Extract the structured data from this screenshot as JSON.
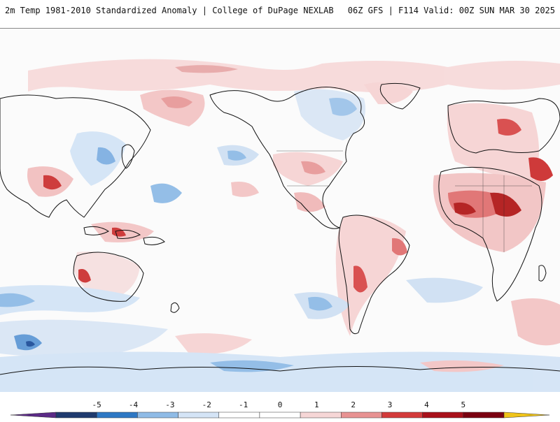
{
  "header": {
    "title": "2m Temp 1981-2010 Standardized Anomaly | College of DuPage NEXLAB",
    "run_info": "06Z GFS | F114 Valid: 00Z SUN MAR 30 2025"
  },
  "colorbar": {
    "ticks": [
      "-5",
      "-4",
      "-3",
      "-2",
      "-1",
      "0",
      "1",
      "2",
      "3",
      "4",
      "5"
    ],
    "colors": [
      "#5b2a86",
      "#1f3a6e",
      "#2e78c4",
      "#8fbbe6",
      "#d4e4f6",
      "#ffffff",
      "#ffffff",
      "#f6d6d6",
      "#e89292",
      "#d33a3a",
      "#a8101a",
      "#7a0010",
      "#f0c419"
    ]
  },
  "map": {
    "anomaly_colors": {
      "cold_strong": "#1f5fb0",
      "cold": "#6fa6dd",
      "cool": "#cfe0f3",
      "warm": "#f6d3d3",
      "warmer": "#e79a9a",
      "hot": "#cc2a2a",
      "hottest": "#8a0010"
    },
    "coastline_color": "#111111"
  }
}
